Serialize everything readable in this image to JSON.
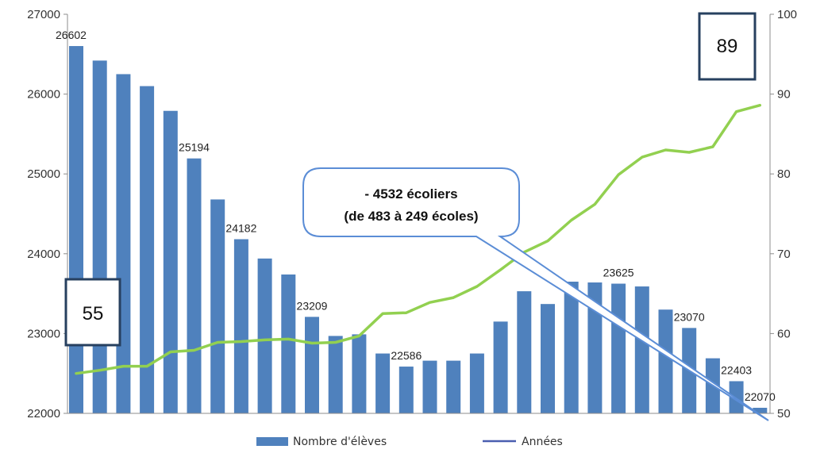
{
  "chart_data": {
    "type": "bar",
    "categories": [
      "",
      "",
      "",
      "",
      "",
      "",
      "",
      "",
      "",
      "",
      "",
      "",
      "",
      "",
      "",
      "",
      "",
      "",
      "",
      "",
      "",
      "",
      "",
      "",
      "",
      "",
      "",
      "",
      "",
      ""
    ],
    "series": [
      {
        "name": "Nombre d'élèves",
        "kind": "bar",
        "axis": "left",
        "color": "#4f81bd",
        "values": [
          26602,
          26420,
          26250,
          26100,
          25790,
          25194,
          24680,
          24182,
          23940,
          23740,
          23209,
          22970,
          22990,
          22750,
          22586,
          22660,
          22660,
          22750,
          23150,
          23530,
          23370,
          23650,
          23640,
          23625,
          23590,
          23300,
          23070,
          22690,
          22403,
          22070
        ]
      },
      {
        "name": "Années",
        "kind": "line",
        "axis": "right",
        "color": "#92d050",
        "legend_color": "#4a5eb0",
        "values": [
          55,
          55.4,
          55.9,
          55.9,
          57.7,
          57.9,
          58.9,
          59.0,
          59.2,
          59.3,
          58.8,
          58.9,
          59.7,
          62.5,
          62.6,
          63.9,
          64.5,
          65.9,
          68.0,
          70.2,
          71.6,
          74.2,
          76.2,
          79.9,
          82.1,
          83.0,
          82.7,
          83.4,
          87.8,
          88.6
        ]
      }
    ],
    "data_labels": [
      {
        "index": 0,
        "text": "26602"
      },
      {
        "index": 5,
        "text": "25194"
      },
      {
        "index": 7,
        "text": "24182"
      },
      {
        "index": 10,
        "text": "23209"
      },
      {
        "index": 14,
        "text": "22586"
      },
      {
        "index": 23,
        "text": "23625"
      },
      {
        "index": 26,
        "text": "23070"
      },
      {
        "index": 28,
        "text": "22403"
      },
      {
        "index": 29,
        "text": "22070"
      }
    ],
    "y_left": {
      "min": 22000,
      "max": 27000,
      "ticks": [
        "22000",
        "23000",
        "24000",
        "25000",
        "26000",
        "27000"
      ]
    },
    "y_right": {
      "min": 50,
      "max": 100,
      "ticks": [
        "50",
        "60",
        "70",
        "80",
        "90",
        "100"
      ]
    },
    "grid": false,
    "legend_position": "bottom",
    "box_start": "55",
    "box_end": "89",
    "callout": {
      "line1": "- 4532 écoliers",
      "line2": "(de 483 à 249 écoles)"
    }
  },
  "colors": {
    "bar": "#4f81bd",
    "line": "#92d050",
    "box_border": "#27405f",
    "callout_border": "#5b8dd6",
    "axis": "#8c8c8c"
  }
}
